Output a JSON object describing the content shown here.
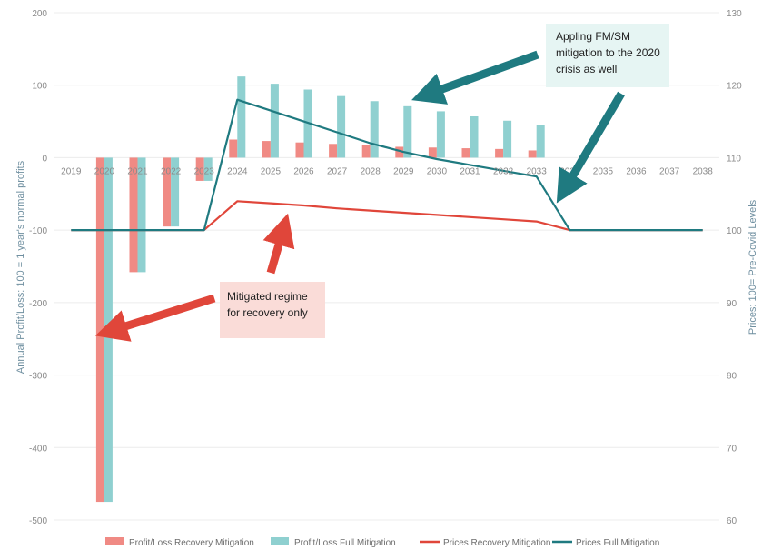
{
  "chart_data": {
    "type": "bar+line",
    "categories": [
      "2019",
      "2020",
      "2021",
      "2022",
      "2023",
      "2024",
      "2025",
      "2026",
      "2027",
      "2028",
      "2029",
      "2030",
      "2031",
      "2032",
      "2033",
      "2034",
      "2035",
      "2036",
      "2037",
      "2038"
    ],
    "series": [
      {
        "name": "Profit/Loss Recovery Mitigation",
        "type": "bar",
        "axis": "left",
        "color": "#f08a84",
        "values": [
          0,
          -475,
          -158,
          -95,
          -32,
          25,
          23,
          21,
          19,
          17,
          15,
          14,
          13,
          12,
          10,
          0,
          0,
          0,
          0,
          0
        ]
      },
      {
        "name": "Profit/Loss Full Mitigation",
        "type": "bar",
        "axis": "left",
        "color": "#8fd0d0",
        "values": [
          0,
          -475,
          -158,
          -95,
          -32,
          112,
          102,
          94,
          85,
          78,
          71,
          64,
          57,
          51,
          45,
          0,
          0,
          0,
          0,
          0
        ]
      },
      {
        "name": "Prices Recovery Mitigation",
        "type": "line",
        "axis": "right",
        "color": "#e0463a",
        "values": [
          100,
          100,
          100,
          100,
          100,
          104,
          103.7,
          103.4,
          103,
          102.7,
          102.4,
          102.1,
          101.8,
          101.5,
          101.2,
          100,
          100,
          100,
          100,
          100
        ]
      },
      {
        "name": "Prices Full Mitigation",
        "type": "line",
        "axis": "right",
        "color": "#1f7a80",
        "values": [
          100,
          100,
          100,
          100,
          100,
          118,
          116.5,
          115,
          113.5,
          112,
          110.8,
          109.8,
          109,
          108.2,
          107.4,
          100,
          100,
          100,
          100,
          100
        ]
      }
    ],
    "left_axis": {
      "label": "Annual Profit/Loss: 100 = 1 year's normal profits",
      "range": [
        -500,
        200
      ],
      "ticks": [
        "200",
        "100",
        "0",
        "-100",
        "-200",
        "-300",
        "-400",
        "-500"
      ]
    },
    "right_axis": {
      "label": "Prices: 100= Pre-Covid Levels",
      "range": [
        60,
        130
      ],
      "ticks": [
        "130",
        "120",
        "110",
        "100",
        "90",
        "80",
        "70",
        "60"
      ]
    },
    "legend_placement": "bottom",
    "annotations": [
      {
        "id": "full",
        "lines": [
          "Appling FM/SM",
          "mitigation to the 2020",
          "crisis as well"
        ],
        "bg": "#e6f5f3",
        "arrow_color": "#1f7a80"
      },
      {
        "id": "recovery",
        "lines": [
          "Mitigated regime",
          "for recovery only"
        ],
        "bg": "#fadcd8",
        "arrow_color": "#e0463a"
      }
    ]
  }
}
